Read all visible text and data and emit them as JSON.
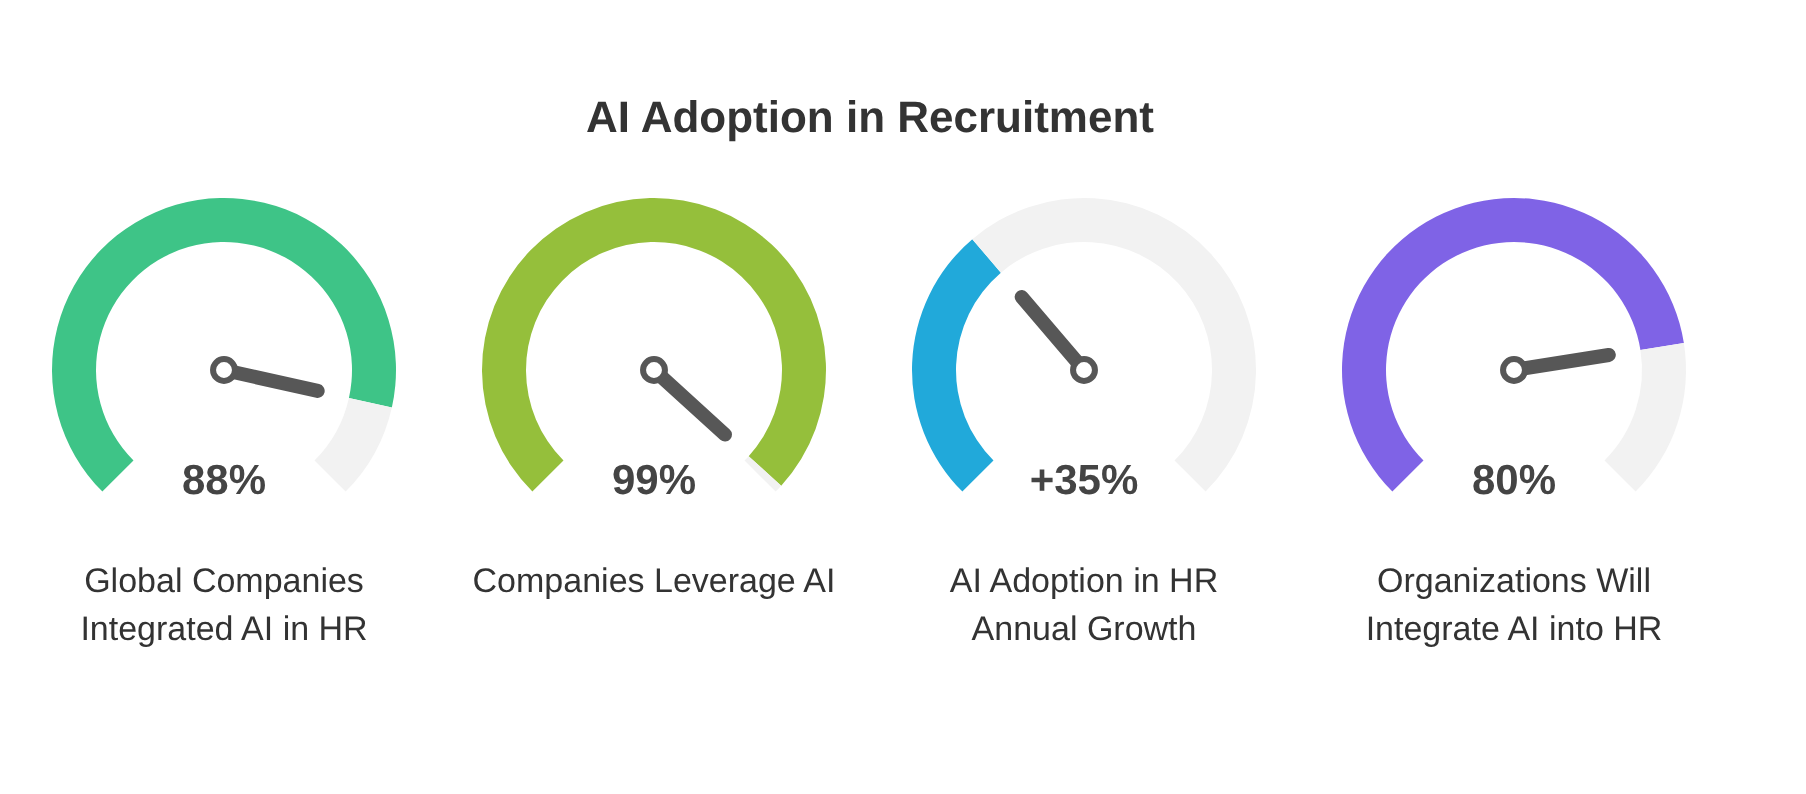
{
  "chart_data": [
    {
      "type": "other",
      "title": "AI Adoption in Recruitment"
    },
    {
      "type": "donut",
      "categories": [
        null,
        null
      ],
      "values": [
        88,
        12
      ],
      "colors": [
        "#3ec487",
        "#f2f2f2"
      ],
      "annotations": [
        "88%",
        "Global Companies Integrated AI in HR"
      ]
    },
    {
      "type": "donut",
      "categories": [
        null,
        null
      ],
      "values": [
        99,
        1
      ],
      "colors": [
        "#95bf3b",
        "#f2f2f2"
      ],
      "annotations": [
        "99%",
        "Companies Leverage AI"
      ]
    },
    {
      "type": "donut",
      "categories": [
        null,
        null
      ],
      "values": [
        35,
        65
      ],
      "colors": [
        "#21a9da",
        "#f2f2f2"
      ],
      "annotations": [
        "+35%",
        "AI Adoption in HR Annual Growth"
      ]
    },
    {
      "type": "donut",
      "categories": [
        null,
        null
      ],
      "values": [
        80,
        20
      ],
      "colors": [
        "#7f63e6",
        "#f2f2f2"
      ],
      "annotations": [
        "80%",
        "Organizations Will Integrate AI into HR"
      ]
    }
  ]
}
